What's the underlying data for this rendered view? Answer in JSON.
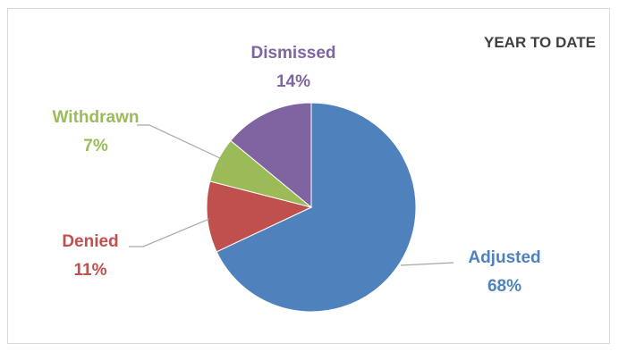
{
  "chart_data": {
    "type": "pie",
    "title": "YEAR TO DATE",
    "categories": [
      "Adjusted",
      "Denied",
      "Withdrawn",
      "Dismissed"
    ],
    "values": [
      68,
      11,
      7,
      14
    ],
    "value_labels": [
      "68%",
      "11%",
      "7%",
      "14%"
    ],
    "colors": [
      "#4f81bd",
      "#c0504d",
      "#9bbb59",
      "#8064a2"
    ],
    "start_angle_deg": 0,
    "direction": "clockwise",
    "legend": "none",
    "data_labels": "outside with leader lines"
  }
}
